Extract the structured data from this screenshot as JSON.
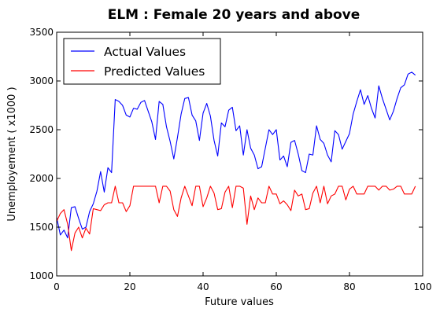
{
  "chart_data": {
    "type": "line",
    "title": "ELM : Female 20 years and above",
    "xlabel": "Future values",
    "ylabel": "Unemployement ( x1000 )",
    "xlim": [
      0,
      100
    ],
    "ylim": [
      1000,
      3500
    ],
    "xticks": [
      0,
      20,
      40,
      60,
      80,
      100
    ],
    "yticks": [
      1000,
      1500,
      2000,
      2500,
      3000,
      3500
    ],
    "grid": false,
    "legend_position": "top-left",
    "series": [
      {
        "name": "Actual Values",
        "color": "#0000ff",
        "x": [
          0,
          1,
          2,
          3,
          4,
          5,
          6,
          7,
          8,
          9,
          10,
          11,
          12,
          13,
          14,
          15,
          16,
          17,
          18,
          19,
          20,
          21,
          22,
          23,
          24,
          25,
          26,
          27,
          28,
          29,
          30,
          31,
          32,
          33,
          34,
          35,
          36,
          37,
          38,
          39,
          40,
          41,
          42,
          43,
          44,
          45,
          46,
          47,
          48,
          49,
          50,
          51,
          52,
          53,
          54,
          55,
          56,
          57,
          58,
          59,
          60,
          61,
          62,
          63,
          64,
          65,
          66,
          67,
          68,
          69,
          70,
          71,
          72,
          73,
          74,
          75,
          76,
          77,
          78,
          79,
          80,
          81,
          82,
          83,
          84,
          85,
          86,
          87,
          88,
          89,
          90,
          91,
          92,
          93,
          94,
          95,
          96,
          97,
          98
        ],
        "values": [
          1600,
          1420,
          1470,
          1390,
          1700,
          1710,
          1590,
          1480,
          1500,
          1660,
          1740,
          1870,
          2070,
          1860,
          2110,
          2060,
          2810,
          2790,
          2750,
          2650,
          2630,
          2720,
          2710,
          2780,
          2800,
          2690,
          2580,
          2400,
          2790,
          2760,
          2530,
          2380,
          2200,
          2420,
          2660,
          2820,
          2830,
          2650,
          2590,
          2390,
          2670,
          2770,
          2640,
          2390,
          2230,
          2570,
          2530,
          2700,
          2730,
          2490,
          2540,
          2240,
          2500,
          2310,
          2240,
          2100,
          2120,
          2310,
          2500,
          2450,
          2500,
          2190,
          2230,
          2120,
          2370,
          2390,
          2250,
          2080,
          2060,
          2250,
          2240,
          2540,
          2400,
          2360,
          2240,
          2170,
          2490,
          2450,
          2300,
          2380,
          2460,
          2660,
          2790,
          2910,
          2760,
          2850,
          2720,
          2620,
          2950,
          2820,
          2710,
          2600,
          2690,
          2820,
          2930,
          2960,
          3070,
          3090,
          3060
        ]
      },
      {
        "name": "Predicted Values",
        "color": "#ff0000",
        "x": [
          0,
          1,
          2,
          3,
          4,
          5,
          6,
          7,
          8,
          9,
          10,
          11,
          12,
          13,
          14,
          15,
          16,
          17,
          18,
          19,
          20,
          21,
          22,
          23,
          24,
          25,
          26,
          27,
          28,
          29,
          30,
          31,
          32,
          33,
          34,
          35,
          36,
          37,
          38,
          39,
          40,
          41,
          42,
          43,
          44,
          45,
          46,
          47,
          48,
          49,
          50,
          51,
          52,
          53,
          54,
          55,
          56,
          57,
          58,
          59,
          60,
          61,
          62,
          63,
          64,
          65,
          66,
          67,
          68,
          69,
          70,
          71,
          72,
          73,
          74,
          75,
          76,
          77,
          78,
          79,
          80,
          81,
          82,
          83,
          84,
          85,
          86,
          87,
          88,
          89,
          90,
          91,
          92,
          93,
          94,
          95,
          96,
          97,
          98
        ],
        "values": [
          1560,
          1640,
          1680,
          1530,
          1260,
          1440,
          1500,
          1390,
          1490,
          1430,
          1690,
          1680,
          1670,
          1730,
          1750,
          1750,
          1920,
          1750,
          1750,
          1660,
          1720,
          1920,
          1920,
          1920,
          1920,
          1920,
          1920,
          1920,
          1750,
          1920,
          1920,
          1870,
          1680,
          1610,
          1800,
          1920,
          1820,
          1720,
          1920,
          1920,
          1710,
          1800,
          1920,
          1850,
          1680,
          1690,
          1860,
          1920,
          1700,
          1920,
          1920,
          1900,
          1530,
          1820,
          1680,
          1800,
          1750,
          1750,
          1920,
          1840,
          1840,
          1740,
          1770,
          1730,
          1670,
          1880,
          1820,
          1840,
          1680,
          1690,
          1850,
          1920,
          1750,
          1920,
          1740,
          1820,
          1840,
          1920,
          1920,
          1780,
          1890,
          1920,
          1840,
          1840,
          1840,
          1920,
          1920,
          1920,
          1880,
          1920,
          1920,
          1880,
          1890,
          1920,
          1920,
          1840,
          1840,
          1840,
          1920
        ]
      }
    ]
  }
}
